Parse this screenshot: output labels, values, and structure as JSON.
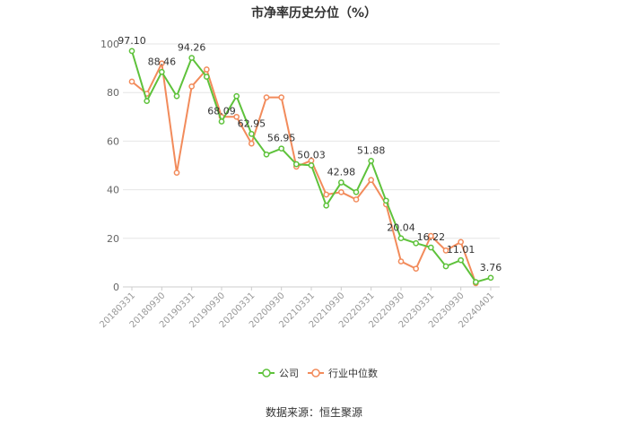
{
  "chart_data": {
    "type": "line",
    "title": "市净率历史分位（%）",
    "source": "数据来源：恒生聚源",
    "x": [
      "20180331",
      "20180630",
      "20180930",
      "20181231",
      "20190331",
      "20190630",
      "20190930",
      "20191231",
      "20200331",
      "20200630",
      "20200930",
      "20201231",
      "20210331",
      "20210630",
      "20210930",
      "20211231",
      "20220331",
      "20220630",
      "20220930",
      "20221231",
      "20230331",
      "20230630",
      "20230930",
      "20231231",
      "20240401"
    ],
    "x_tick_labels": [
      "20180331",
      "20180930",
      "20190331",
      "20190930",
      "20200331",
      "20200930",
      "20210331",
      "20210930",
      "20220331",
      "20220930",
      "20230331",
      "20230930",
      "20240401"
    ],
    "ylim": [
      0,
      100
    ],
    "yticks": [
      0,
      20,
      40,
      60,
      80,
      100
    ],
    "grid": true,
    "legend_position": "bottom",
    "series": [
      {
        "name": "公司",
        "color": "#5ec23b",
        "values": [
          97.1,
          76.5,
          88.46,
          78.5,
          94.26,
          86.5,
          68.09,
          78.5,
          62.95,
          54.5,
          56.95,
          50.5,
          50.03,
          33.5,
          42.98,
          39.0,
          51.88,
          35.5,
          20.04,
          18.0,
          16.22,
          8.5,
          11.01,
          2.0,
          3.76
        ],
        "labels": [
          "97.10",
          "",
          "88.46",
          "",
          "94.26",
          "",
          "68.09",
          "",
          "62.95",
          "",
          "56.95",
          "",
          "50.03",
          "",
          "42.98",
          "",
          "51.88",
          "",
          "20.04",
          "",
          "16.22",
          "",
          "11.01",
          "",
          "3.76"
        ]
      },
      {
        "name": "行业中位数",
        "color": "#f28b5b",
        "values": [
          84.5,
          79.5,
          92.0,
          47.0,
          82.5,
          89.5,
          70.0,
          70.0,
          59.0,
          78.0,
          78.0,
          49.5,
          52.0,
          38.0,
          39.0,
          36.0,
          44.0,
          34.0,
          10.5,
          7.5,
          21.0,
          15.0,
          18.5,
          1.5,
          null
        ]
      }
    ]
  }
}
